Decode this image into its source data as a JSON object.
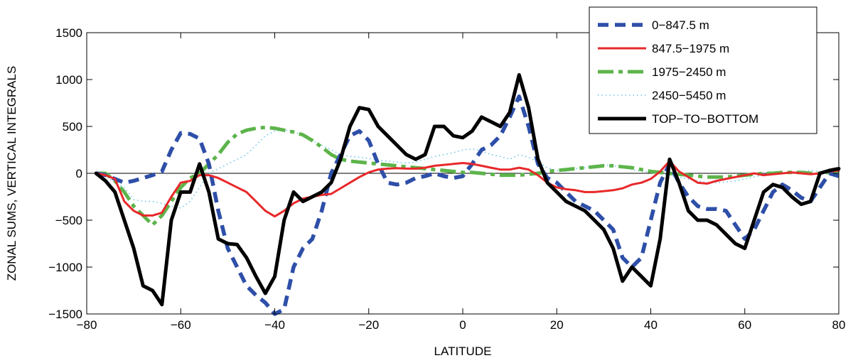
{
  "chart_data": {
    "type": "line",
    "title": "",
    "xlabel": "LATITUDE",
    "ylabel": "ZONAL SUMS, VERTICAL INTEGRALS",
    "xlim": [
      -80,
      80
    ],
    "ylim": [
      -1500,
      1500
    ],
    "xticks": [
      "-80",
      "-60",
      "-40",
      "-20",
      "0",
      "20",
      "40",
      "60",
      "80"
    ],
    "yticks": [
      "-1500",
      "-1000",
      "-500",
      "0",
      "500",
      "1000",
      "1500"
    ],
    "grid": false,
    "legend_position": "top-right",
    "series": [
      {
        "name": "0−847.5 m",
        "color": "#2E4FA8",
        "style": "dashed",
        "x": [
          -78,
          -76,
          -74,
          -72,
          -70,
          -68,
          -66,
          -64,
          -62,
          -60,
          -58,
          -56,
          -54,
          -52,
          -50,
          -48,
          -46,
          -44,
          -42,
          -40,
          -38,
          -36,
          -34,
          -32,
          -30,
          -28,
          -26,
          -24,
          -22,
          -20,
          -18,
          -16,
          -14,
          -12,
          -10,
          -8,
          -6,
          -4,
          -2,
          0,
          2,
          4,
          6,
          8,
          10,
          12,
          14,
          16,
          18,
          20,
          22,
          24,
          26,
          28,
          30,
          32,
          34,
          36,
          38,
          40,
          42,
          44,
          46,
          48,
          50,
          52,
          54,
          56,
          58,
          60,
          62,
          64,
          66,
          68,
          70,
          72,
          74,
          76,
          78,
          80
        ],
        "y": [
          0,
          -20,
          -60,
          -100,
          -80,
          -50,
          -20,
          20,
          250,
          430,
          420,
          370,
          100,
          -400,
          -800,
          -1000,
          -1200,
          -1300,
          -1380,
          -1500,
          -1450,
          -1000,
          -800,
          -700,
          -400,
          0,
          200,
          400,
          450,
          350,
          100,
          -100,
          -120,
          -100,
          -50,
          -30,
          0,
          -30,
          -50,
          -30,
          100,
          250,
          300,
          400,
          600,
          820,
          500,
          100,
          -50,
          -100,
          -200,
          -300,
          -350,
          -400,
          -500,
          -600,
          -900,
          -1000,
          -900,
          -500,
          -100,
          100,
          -100,
          -250,
          -350,
          -380,
          -380,
          -400,
          -550,
          -700,
          -600,
          -400,
          -200,
          -120,
          -180,
          -260,
          -300,
          -150,
          0,
          -30
        ]
      },
      {
        "name": "847.5−1975 m",
        "color": "#E8282A",
        "style": "solid",
        "x": [
          -78,
          -76,
          -74,
          -72,
          -70,
          -68,
          -66,
          -64,
          -62,
          -60,
          -58,
          -56,
          -54,
          -52,
          -50,
          -48,
          -46,
          -44,
          -42,
          -40,
          -38,
          -36,
          -34,
          -32,
          -30,
          -28,
          -26,
          -24,
          -22,
          -20,
          -18,
          -16,
          -14,
          -12,
          -10,
          -8,
          -6,
          -4,
          -2,
          0,
          2,
          4,
          6,
          8,
          10,
          12,
          14,
          16,
          18,
          20,
          22,
          24,
          26,
          28,
          30,
          32,
          34,
          36,
          38,
          40,
          42,
          44,
          46,
          48,
          50,
          52,
          54,
          56,
          58,
          60,
          62,
          64,
          66,
          68,
          70,
          72,
          74,
          76,
          78,
          80
        ],
        "y": [
          0,
          -20,
          -60,
          -300,
          -400,
          -450,
          -450,
          -420,
          -250,
          -100,
          -80,
          -20,
          -20,
          -50,
          -100,
          -150,
          -200,
          -300,
          -400,
          -460,
          -400,
          -320,
          -270,
          -250,
          -230,
          -220,
          -160,
          -100,
          -40,
          10,
          40,
          50,
          55,
          50,
          50,
          60,
          80,
          90,
          100,
          110,
          100,
          80,
          60,
          40,
          40,
          60,
          40,
          -20,
          -100,
          -150,
          -170,
          -180,
          -200,
          -200,
          -190,
          -180,
          -160,
          -120,
          -100,
          -60,
          20,
          130,
          20,
          -40,
          -100,
          -110,
          -80,
          -60,
          -40,
          -20,
          0,
          -20,
          -10,
          0,
          10,
          0,
          -10,
          0,
          20,
          30
        ]
      },
      {
        "name": "1975−2450 m",
        "color": "#5DB44B",
        "style": "dashdot",
        "x": [
          -78,
          -76,
          -74,
          -72,
          -70,
          -68,
          -66,
          -64,
          -62,
          -60,
          -58,
          -56,
          -54,
          -52,
          -50,
          -48,
          -46,
          -44,
          -42,
          -40,
          -38,
          -36,
          -34,
          -32,
          -30,
          -28,
          -26,
          -24,
          -22,
          -20,
          -18,
          -16,
          -14,
          -12,
          -10,
          -8,
          -6,
          -4,
          -2,
          0,
          2,
          4,
          6,
          8,
          10,
          12,
          14,
          16,
          18,
          20,
          22,
          24,
          26,
          28,
          30,
          32,
          34,
          36,
          38,
          40,
          42,
          44,
          46,
          48,
          50,
          52,
          54,
          56,
          58,
          60,
          62,
          64,
          66,
          68,
          70,
          72,
          74,
          76,
          78,
          80
        ],
        "y": [
          0,
          0,
          -80,
          -200,
          -350,
          -450,
          -550,
          -450,
          -300,
          -150,
          -50,
          0,
          100,
          200,
          330,
          420,
          460,
          480,
          490,
          480,
          460,
          440,
          410,
          350,
          280,
          200,
          150,
          130,
          120,
          110,
          100,
          90,
          80,
          70,
          60,
          50,
          40,
          30,
          20,
          10,
          10,
          0,
          -10,
          -20,
          -20,
          -20,
          -10,
          0,
          20,
          30,
          40,
          50,
          60,
          70,
          80,
          80,
          70,
          60,
          40,
          20,
          10,
          0,
          -10,
          -20,
          -30,
          -40,
          -40,
          -40,
          -30,
          -20,
          -10,
          0,
          0,
          10,
          10,
          10,
          0,
          0,
          10,
          20
        ]
      },
      {
        "name": "2450−5450 m",
        "color": "#6BC5E8",
        "style": "dotted",
        "x": [
          -78,
          -76,
          -74,
          -72,
          -70,
          -68,
          -66,
          -64,
          -62,
          -60,
          -58,
          -56,
          -54,
          -52,
          -50,
          -48,
          -46,
          -44,
          -42,
          -40,
          -38,
          -36,
          -34,
          -32,
          -30,
          -28,
          -26,
          -24,
          -22,
          -20,
          -18,
          -16,
          -14,
          -12,
          -10,
          -8,
          -6,
          -4,
          -2,
          0,
          2,
          4,
          6,
          8,
          10,
          12,
          14,
          16,
          18,
          20,
          22,
          24,
          26,
          28,
          30,
          32,
          34,
          36,
          38,
          40,
          42,
          44,
          46,
          48,
          50,
          52,
          54,
          56,
          58,
          60,
          62,
          64,
          66,
          68,
          70,
          72,
          74,
          76,
          78,
          80
        ],
        "y": [
          0,
          -30,
          -100,
          -150,
          -280,
          -300,
          -300,
          -320,
          -350,
          -370,
          -300,
          -150,
          0,
          50,
          100,
          150,
          200,
          300,
          400,
          450,
          460,
          450,
          400,
          350,
          300,
          250,
          200,
          180,
          170,
          160,
          140,
          130,
          120,
          110,
          120,
          150,
          180,
          200,
          220,
          250,
          260,
          240,
          200,
          180,
          150,
          200,
          170,
          120,
          60,
          30,
          20,
          50,
          60,
          80,
          90,
          80,
          60,
          40,
          20,
          10,
          0,
          -20,
          -40,
          -60,
          -80,
          -100,
          -100,
          -90,
          -80,
          -60,
          -40,
          -20,
          -10,
          0,
          10,
          20,
          30,
          20,
          0,
          -10
        ]
      },
      {
        "name": "TOP−TO−BOTTOM",
        "color": "#000000",
        "style": "solid",
        "x": [
          -78,
          -76,
          -74,
          -72,
          -70,
          -68,
          -66,
          -64,
          -62,
          -60,
          -58,
          -56,
          -54,
          -52,
          -50,
          -48,
          -46,
          -44,
          -42,
          -40,
          -38,
          -36,
          -34,
          -32,
          -30,
          -28,
          -26,
          -24,
          -22,
          -20,
          -18,
          -16,
          -14,
          -12,
          -10,
          -8,
          -6,
          -4,
          -2,
          0,
          2,
          4,
          6,
          8,
          10,
          12,
          14,
          16,
          18,
          20,
          22,
          24,
          26,
          28,
          30,
          32,
          34,
          36,
          38,
          40,
          42,
          44,
          46,
          48,
          50,
          52,
          54,
          56,
          58,
          60,
          62,
          64,
          66,
          68,
          70,
          72,
          74,
          76,
          78,
          80
        ],
        "y": [
          0,
          -80,
          -200,
          -500,
          -800,
          -1200,
          -1250,
          -1400,
          -500,
          -200,
          -200,
          100,
          -200,
          -700,
          -750,
          -760,
          -900,
          -1100,
          -1280,
          -1100,
          -500,
          -200,
          -300,
          -250,
          -200,
          -100,
          150,
          500,
          700,
          680,
          500,
          400,
          300,
          200,
          150,
          200,
          500,
          500,
          400,
          380,
          450,
          600,
          550,
          500,
          650,
          1050,
          700,
          150,
          -100,
          -200,
          -300,
          -350,
          -400,
          -500,
          -600,
          -800,
          -1150,
          -1000,
          -1100,
          -1200,
          -700,
          150,
          -100,
          -400,
          -500,
          -500,
          -550,
          -650,
          -750,
          -800,
          -500,
          -200,
          -120,
          -150,
          -250,
          -330,
          -300,
          0,
          30,
          50
        ]
      }
    ]
  }
}
